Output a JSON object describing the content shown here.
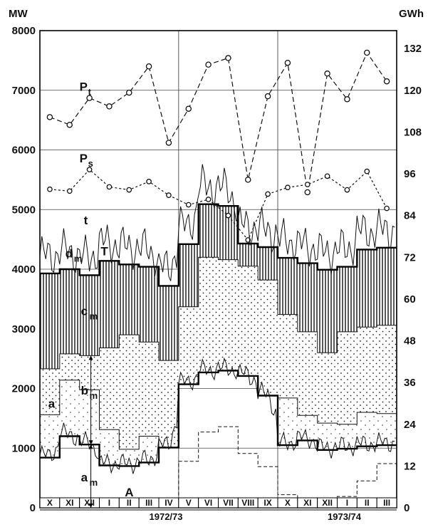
{
  "chart_data": {
    "type": "line",
    "y_left_unit": "MW",
    "y_right_unit": "GWh",
    "y_left_ticks": [
      "0",
      "1000",
      "2000",
      "3000",
      "4000",
      "5000",
      "6000",
      "7000",
      "8000"
    ],
    "y_left_range": [
      0,
      8000
    ],
    "y_right_ticks": [
      "0",
      "12",
      "24",
      "36",
      "48",
      "60",
      "72",
      "84",
      "96",
      "108",
      "120",
      "132"
    ],
    "months": [
      "X",
      "XI",
      "XII",
      "I",
      "II",
      "III",
      "IV",
      "V",
      "VI",
      "VII",
      "VIII",
      "IX",
      "X",
      "XI",
      "XII",
      "I",
      "II",
      "III"
    ],
    "seasons": [
      "1972/73",
      "1973/74"
    ],
    "curve_labels": {
      "Pt": {
        "main": "P",
        "sub": "t"
      },
      "Ps": {
        "main": "P",
        "sub": "s"
      },
      "t": {
        "main": "t",
        "sub": ""
      },
      "T": {
        "main": "T",
        "sub": ""
      },
      "dm": {
        "main": "d",
        "sub": "m"
      },
      "cm": {
        "main": "c",
        "sub": "m"
      },
      "bm": {
        "main": "b",
        "sub": "m"
      },
      "a": {
        "main": "a",
        "sub": ""
      },
      "am": {
        "main": "a",
        "sub": "m"
      },
      "A": {
        "main": "A",
        "sub": ""
      }
    },
    "series": [
      {
        "id": "Pt",
        "values": [
          6550,
          6420,
          6870,
          6730,
          6960,
          7400,
          6120,
          6690,
          7430,
          7540,
          5500,
          6900,
          7460,
          5290,
          7280,
          6850,
          7630,
          7150
        ]
      },
      {
        "id": "Ps",
        "values": [
          5340,
          5310,
          5670,
          5380,
          5330,
          5470,
          5240,
          5080,
          5170,
          4900,
          4490,
          5260,
          5370,
          5420,
          5560,
          5330,
          5640,
          5020
        ]
      },
      {
        "id": "T",
        "values": [
          3930,
          4000,
          3900,
          4140,
          4080,
          4040,
          3720,
          4420,
          5090,
          5060,
          4430,
          4370,
          4190,
          4100,
          3990,
          4040,
          4330,
          4360
        ]
      },
      {
        "id": "cm_bottom",
        "values": [
          2330,
          2580,
          2550,
          2680,
          2900,
          2780,
          2470,
          3370,
          4200,
          4160,
          4050,
          3820,
          3240,
          2950,
          2600,
          2950,
          3030,
          3060
        ]
      },
      {
        "id": "bm_bottom",
        "values": [
          1560,
          2140,
          1980,
          1310,
          980,
          1200,
          1010,
          2070,
          2270,
          2300,
          2210,
          1880,
          1840,
          1550,
          1420,
          1400,
          1600,
          1580
        ]
      },
      {
        "id": "am",
        "values": [
          840,
          1200,
          1060,
          710,
          700,
          760,
          1010,
          2070,
          2270,
          2300,
          2210,
          1880,
          1050,
          1130,
          970,
          990,
          1030,
          1050
        ]
      },
      {
        "id": "A",
        "values": [
          0,
          0,
          0,
          0,
          120,
          80,
          0,
          780,
          1270,
          1360,
          910,
          690,
          220,
          0,
          0,
          190,
          450,
          740
        ]
      }
    ],
    "grid": true,
    "legend": "none"
  }
}
